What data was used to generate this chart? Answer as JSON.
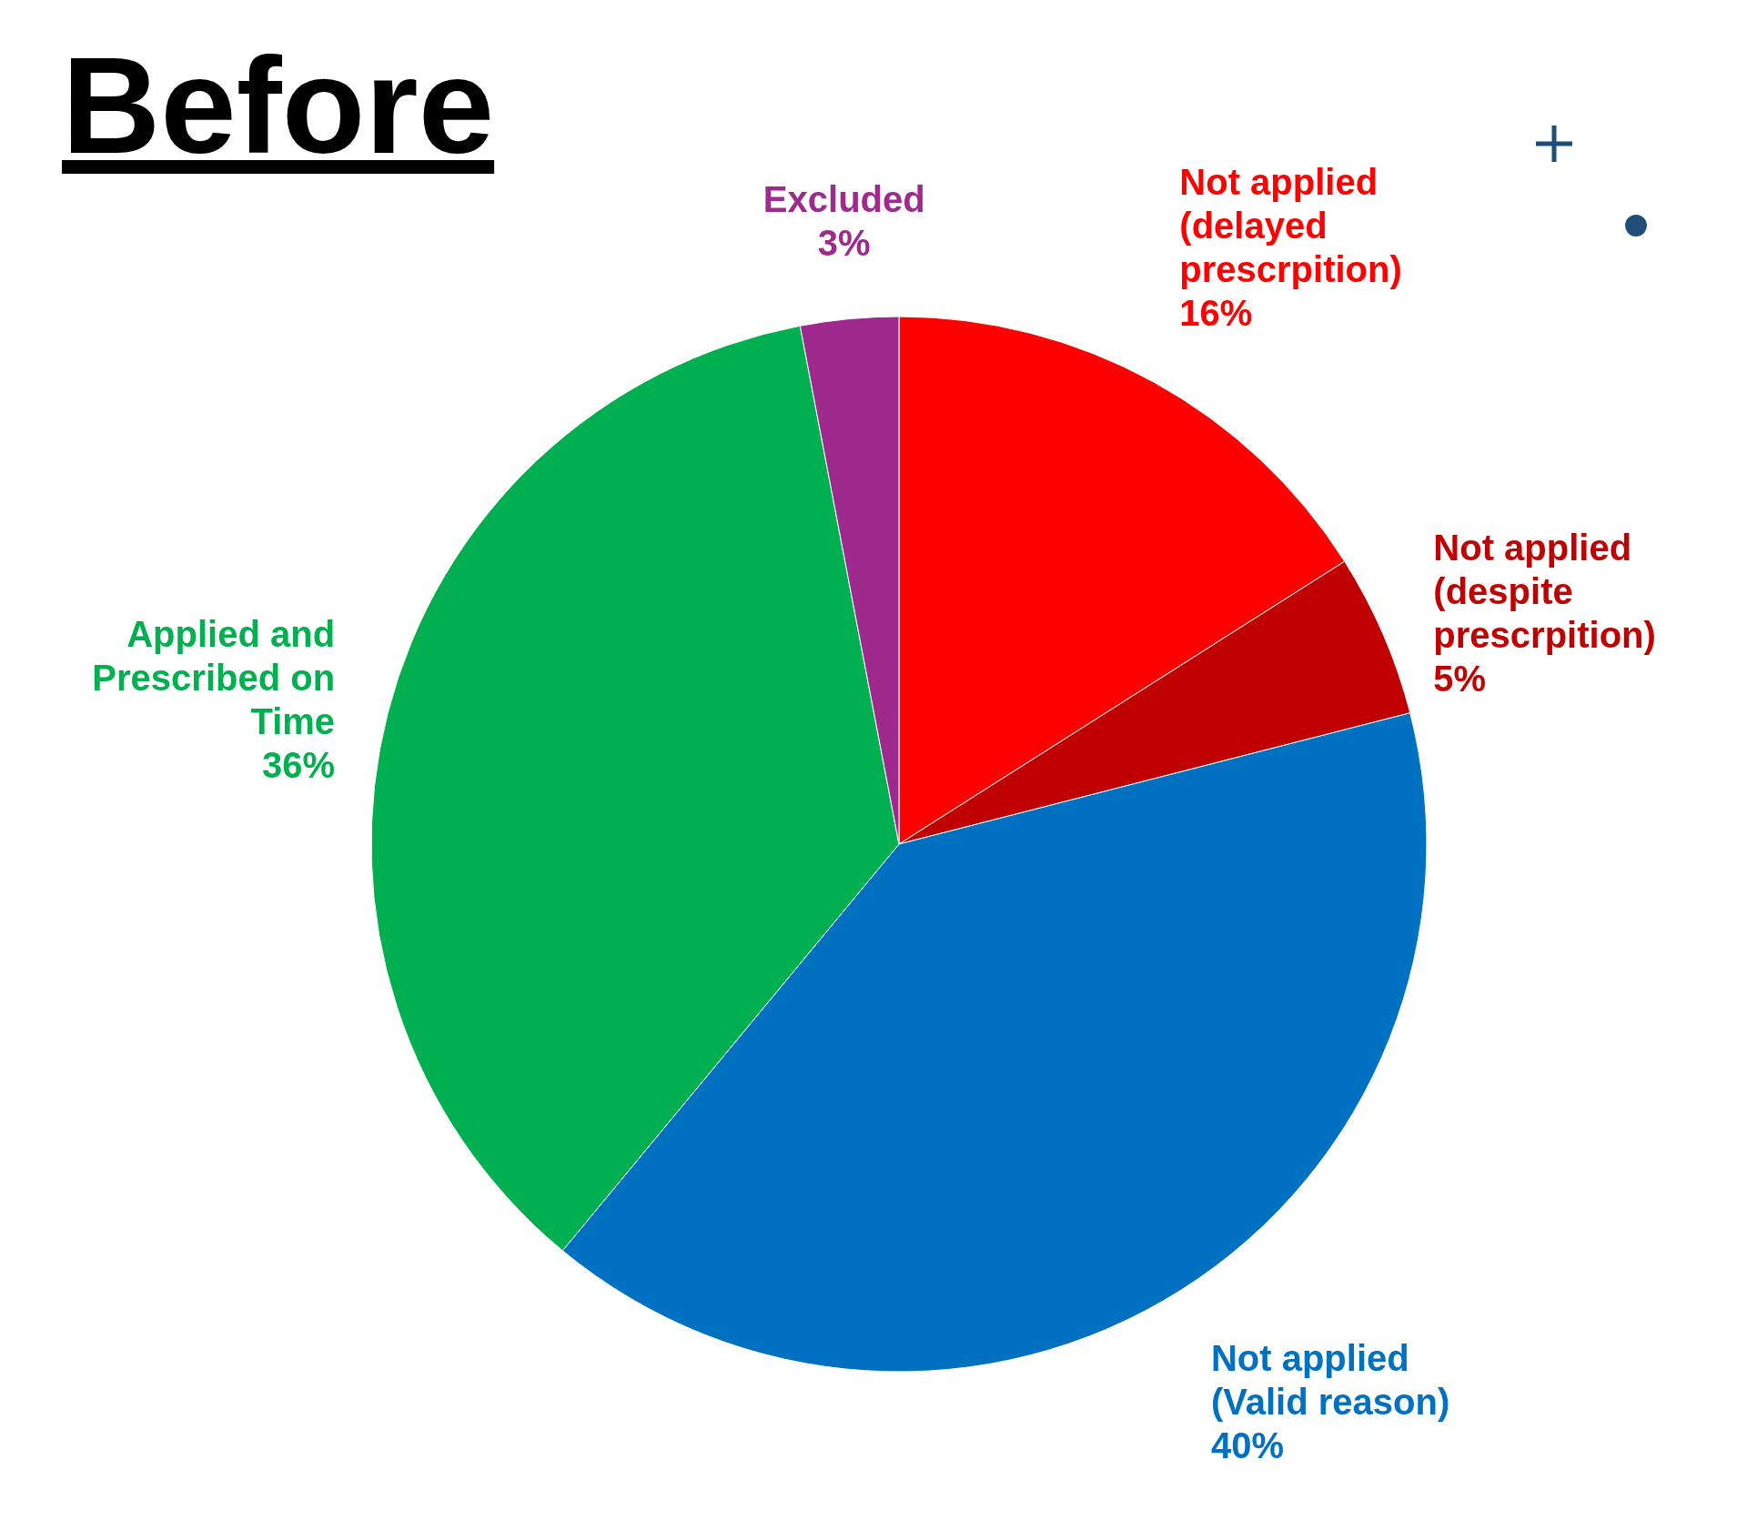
{
  "chart_data": {
    "type": "pie",
    "title": "Before",
    "categories": [
      "Not applied (delayed prescrpition)",
      "Not applied (despite prescrpition)",
      "Not applied (Valid reason)",
      "Applied and Prescribed on Time",
      "Excluded"
    ],
    "values": [
      16,
      5,
      40,
      36,
      3
    ],
    "colors": [
      "#ff0000",
      "#c00000",
      "#0070c0",
      "#00b050",
      "#9e2a8e"
    ],
    "value_labels": [
      "16%",
      "5%",
      "40%",
      "36%",
      "3%"
    ]
  }
}
